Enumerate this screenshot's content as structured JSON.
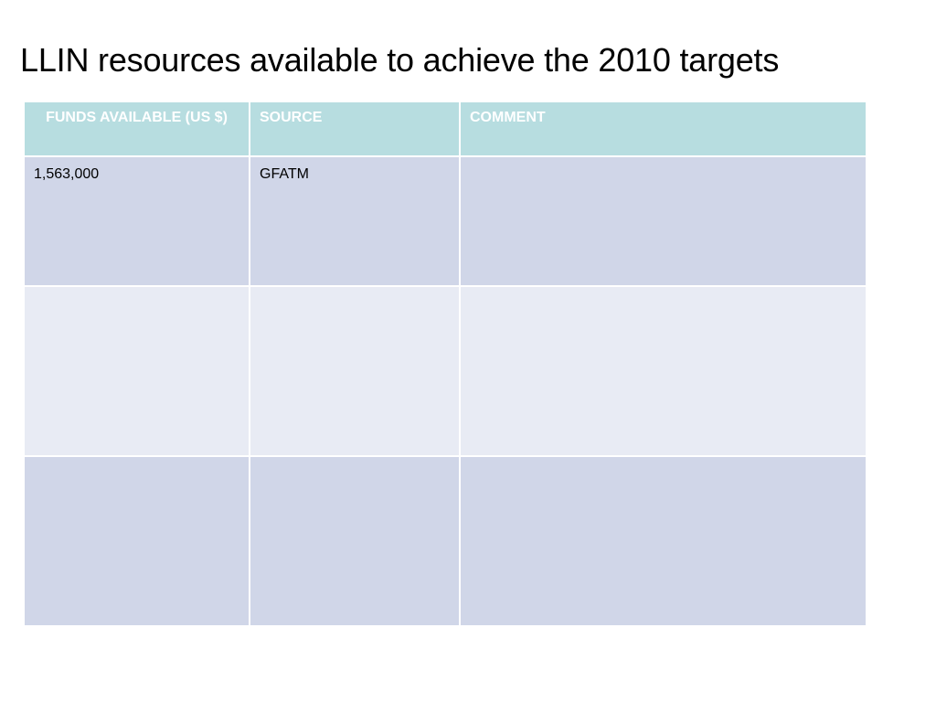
{
  "slide": {
    "title": "LLIN resources available to achieve the 2010 targets"
  },
  "table": {
    "headers": [
      "FUNDS AVAILABLE (US $)",
      "SOURCE",
      "COMMENT"
    ],
    "rows": [
      [
        "1,563,000",
        "GFATM",
        ""
      ],
      [
        "",
        "",
        ""
      ],
      [
        "",
        "",
        ""
      ]
    ]
  },
  "colors": {
    "header_bg": "#b7dde0",
    "row_dark": "#d0d6e8",
    "row_light": "#e8ebf4"
  }
}
